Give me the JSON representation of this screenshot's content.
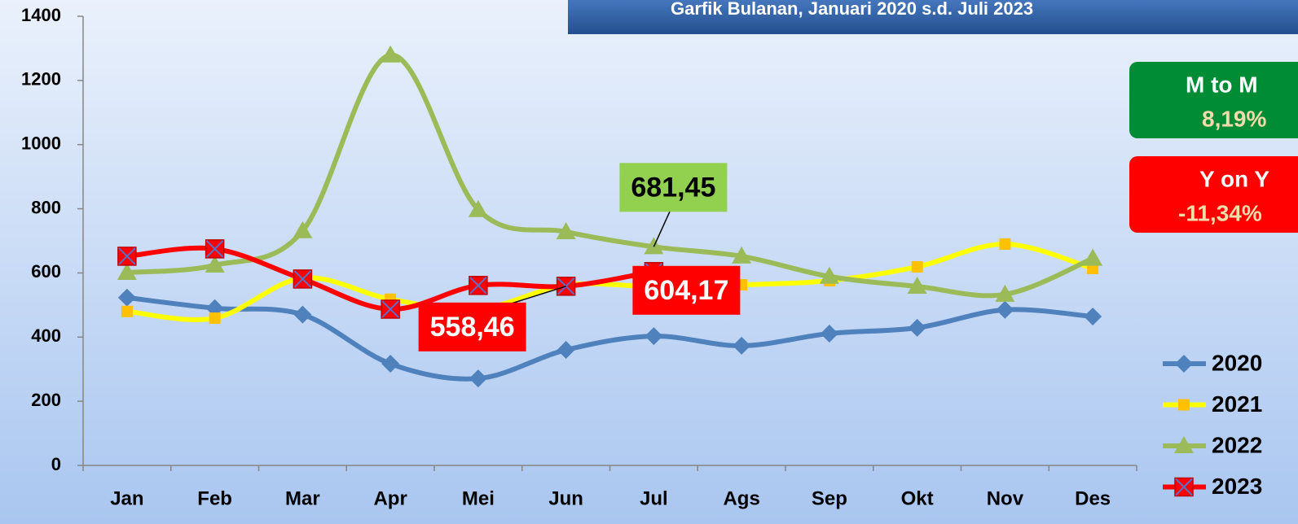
{
  "chart_data": {
    "type": "line",
    "title": "Garfik Bulanan, Januari 2020 s.d. Juli 2023",
    "categories": [
      "Jan",
      "Feb",
      "Mar",
      "Apr",
      "Mei",
      "Jun",
      "Jul",
      "Ags",
      "Sep",
      "Okt",
      "Nov",
      "Des"
    ],
    "series": [
      {
        "name": "2020",
        "color": "#4f81bd",
        "marker": "diamond",
        "values": [
          523,
          490,
          470,
          317,
          271,
          360,
          403,
          373,
          411,
          429,
          485,
          464
        ]
      },
      {
        "name": "2021",
        "color": "#ffff00",
        "marker_color": "#ffc000",
        "marker": "square",
        "values": [
          480,
          459,
          584,
          518,
          487,
          562,
          558,
          563,
          576,
          619,
          690,
          614
        ]
      },
      {
        "name": "2022",
        "color": "#9bbb59",
        "marker": "triangle",
        "values": [
          601,
          624,
          731,
          1279,
          797,
          728,
          681.45,
          652,
          589,
          558,
          533,
          645
        ],
        "value_labels": [
          null,
          null,
          null,
          null,
          null,
          null,
          "681,45",
          null,
          null,
          null,
          null,
          null
        ]
      },
      {
        "name": "2023",
        "color": "#ff0000",
        "marker": "xsquare",
        "values": [
          652,
          675,
          581,
          487,
          561,
          558.46,
          604.17,
          null,
          null,
          null,
          null,
          null
        ],
        "value_labels": [
          null,
          null,
          null,
          null,
          null,
          "558,46",
          "604,17",
          null,
          null,
          null,
          null,
          null
        ]
      }
    ],
    "ylim": [
      0,
      1400
    ],
    "yticks": [
      0,
      200,
      400,
      600,
      800,
      1000,
      1200,
      1400
    ],
    "legend": "right",
    "annotations": [
      {
        "title": "M to M",
        "text": "8,19%",
        "color": "#008c35"
      },
      {
        "title": "Y on Y",
        "text": "-11,34%",
        "color": "#ff0000"
      }
    ]
  }
}
